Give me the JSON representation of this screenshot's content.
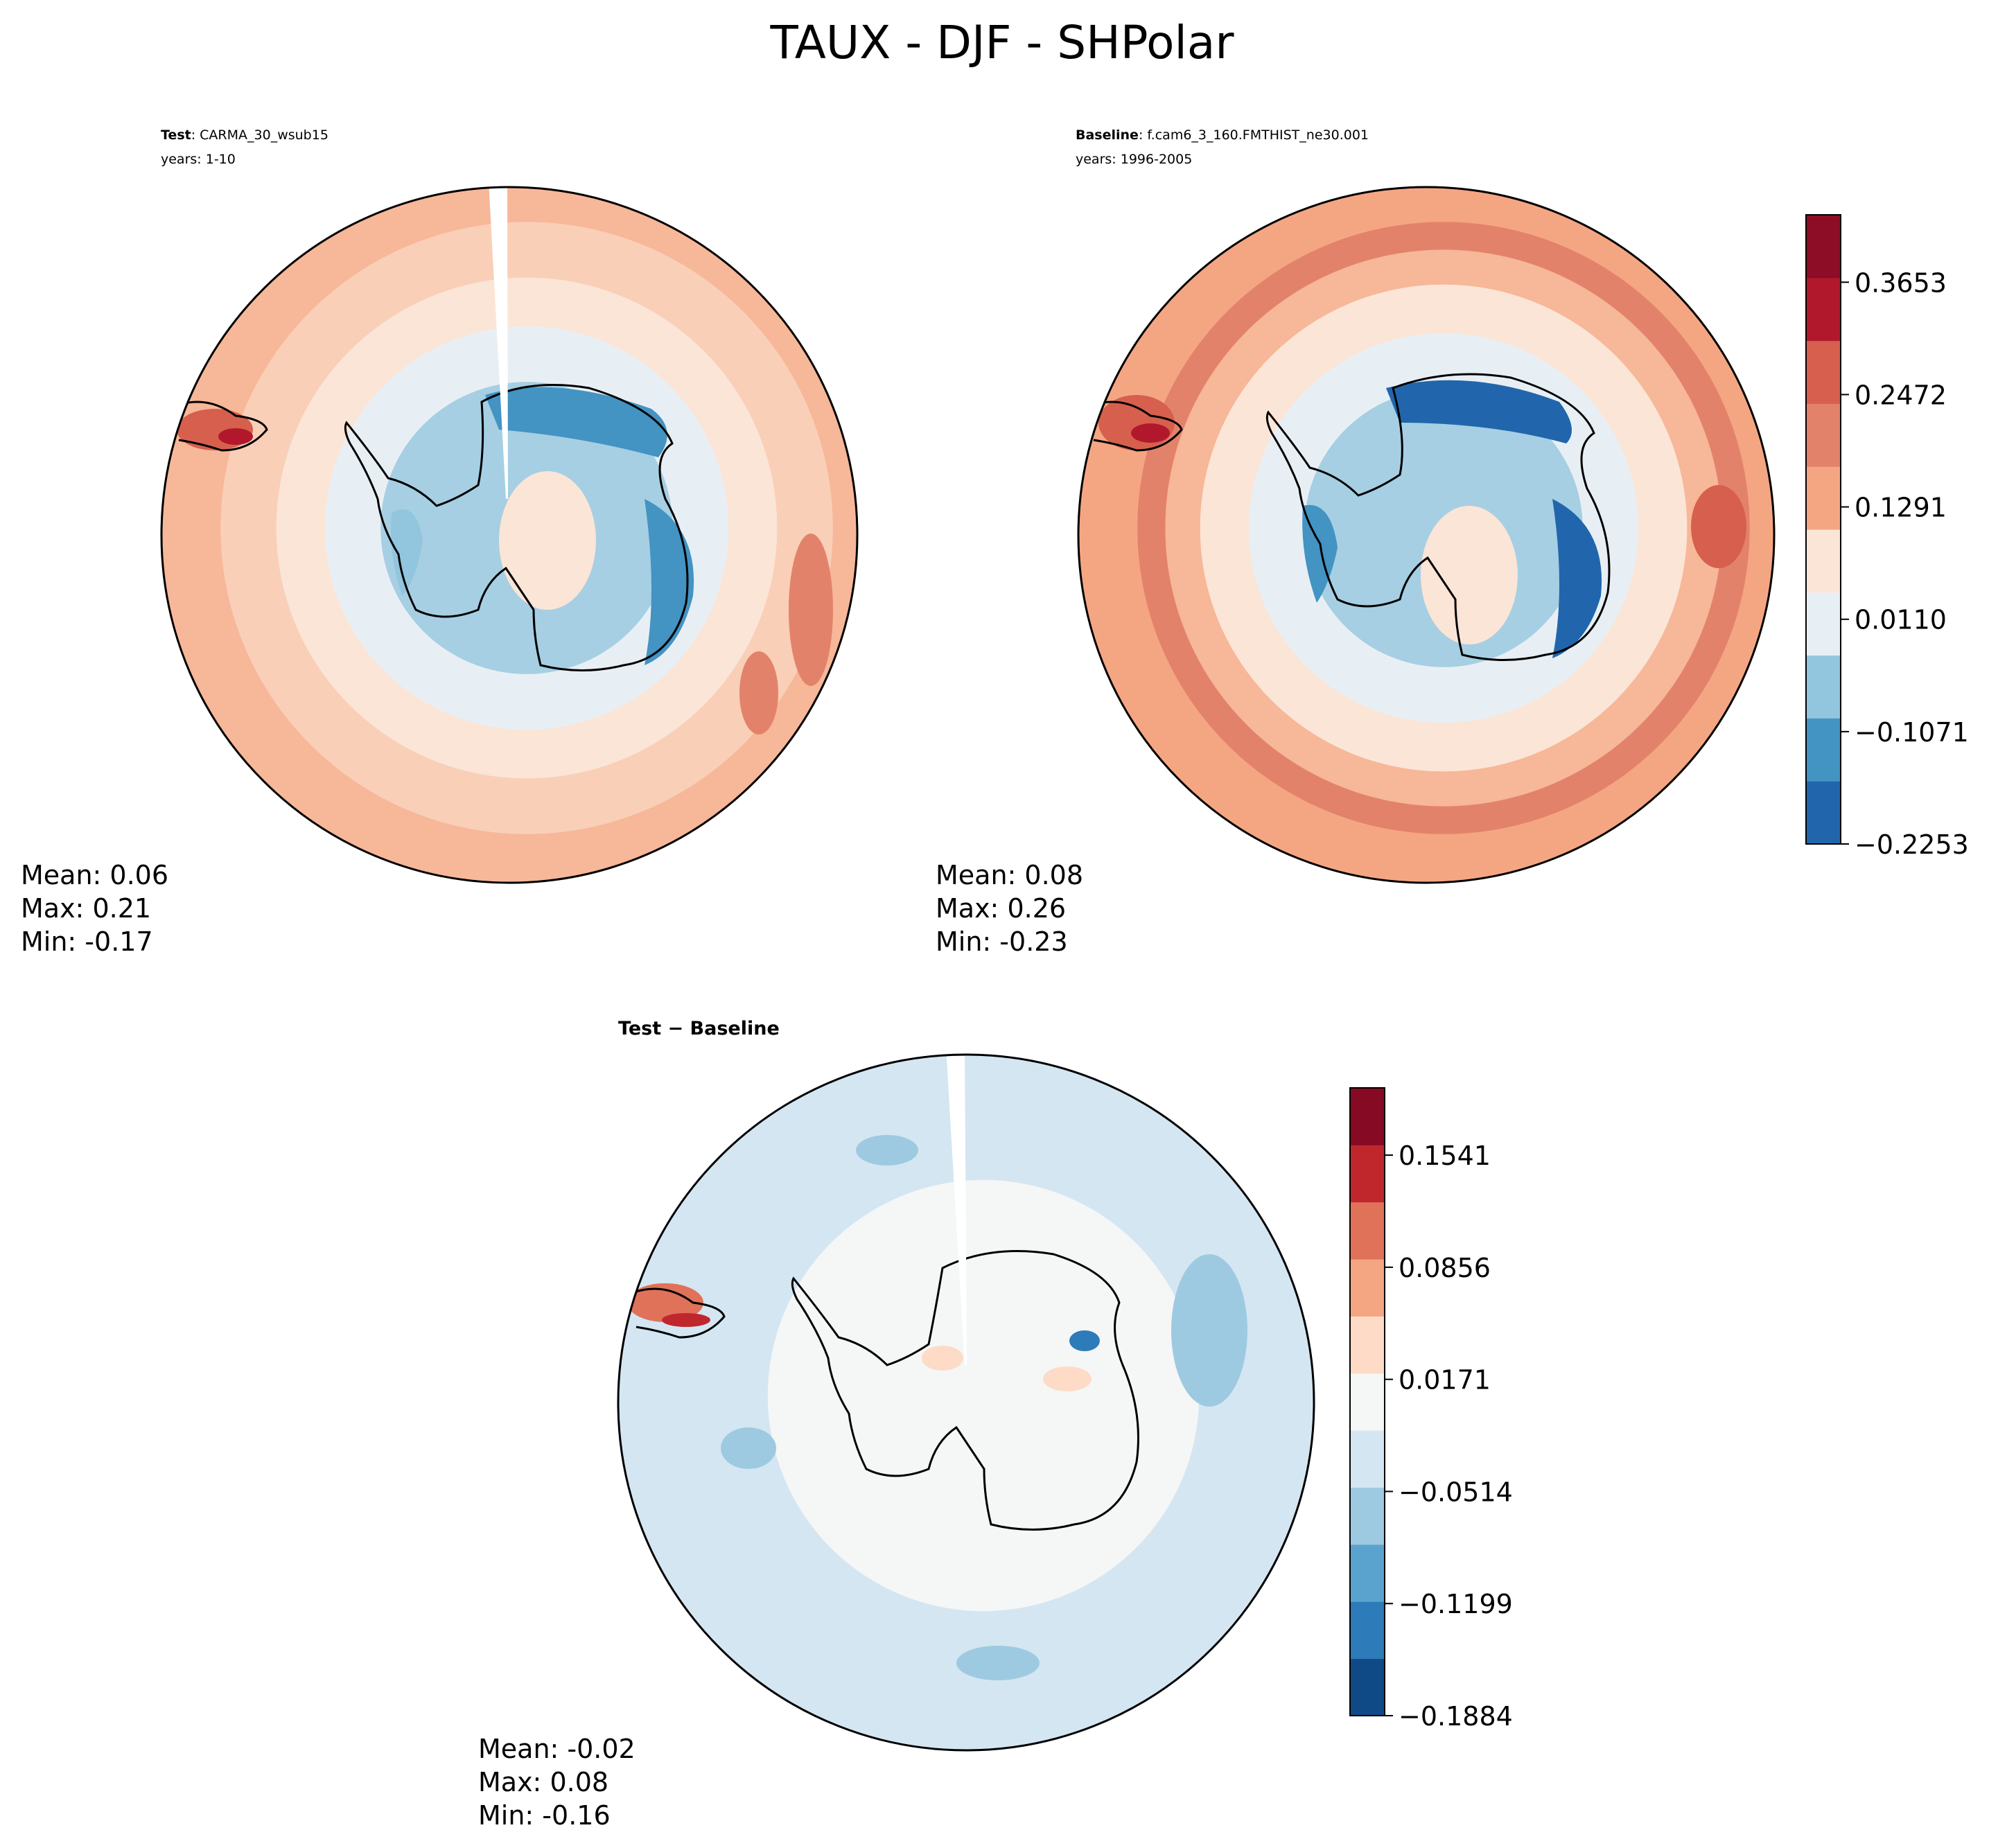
{
  "figure": {
    "title": "TAUX - DJF - SHPolar"
  },
  "chart_data": [
    {
      "type": "heatmap",
      "projection": "south-polar-stereographic",
      "subtitle_bold": "Test",
      "subtitle": ": CARMA_30_wsub15",
      "years": "years: 1-10",
      "stats": {
        "mean": "Mean:  0.06",
        "max": "Max:  0.21",
        "min": "Min: -0.17"
      },
      "rings_from_edge": [
        {
          "r": 1.0,
          "color": "#f7b799"
        },
        {
          "r": 0.88,
          "color": "#f9cfb7"
        },
        {
          "r": 0.72,
          "color": "#fbe5d7"
        },
        {
          "r": 0.58,
          "color": "#e8eff4"
        },
        {
          "r": 0.42,
          "color": "#a6cfe3"
        }
      ],
      "seam_gap": true
    },
    {
      "type": "heatmap",
      "projection": "south-polar-stereographic",
      "subtitle_bold": "Baseline",
      "subtitle": ": f.cam6_3_160.FMTHIST_ne30.001",
      "years": "years: 1996-2005",
      "stats": {
        "mean": "Mean:  0.08",
        "max": "Max:  0.26",
        "min": "Min: -0.23"
      },
      "rings_from_edge": [
        {
          "r": 1.0,
          "color": "#f4a683"
        },
        {
          "r": 0.88,
          "color": "#e3826a"
        },
        {
          "r": 0.8,
          "color": "#f7b799"
        },
        {
          "r": 0.7,
          "color": "#fbe5d7"
        },
        {
          "r": 0.56,
          "color": "#e8eff4"
        },
        {
          "r": 0.4,
          "color": "#a6cfe3"
        }
      ],
      "seam_gap": false,
      "colorbar": {
        "ticks": [
          "0.3653",
          "0.2472",
          "0.1291",
          "0.0110",
          "−0.1071",
          "−0.2253"
        ],
        "colors": [
          "#2166ac",
          "#4393c3",
          "#92c5de",
          "#e8eff4",
          "#fbe5d7",
          "#f4a683",
          "#e3826a",
          "#d6604d",
          "#b2182b",
          "#8c0d25"
        ]
      }
    },
    {
      "type": "heatmap",
      "projection": "south-polar-stereographic",
      "subtitle": "Test − Baseline",
      "stats": {
        "mean": "Mean: -0.02",
        "max": "Max:  0.08",
        "min": "Min: -0.16"
      },
      "rings_from_edge": [
        {
          "r": 1.0,
          "color": "#d4e6f1"
        },
        {
          "r": 0.62,
          "color": "#f5f6f6"
        }
      ],
      "seam_gap": true,
      "colorbar": {
        "ticks": [
          "0.1541",
          "0.0856",
          "0.0171",
          "−0.0514",
          "−0.1199",
          "−0.1884"
        ],
        "colors": [
          "#0f4a87",
          "#2d7bb8",
          "#5aa3cf",
          "#9ecae1",
          "#d4e6f1",
          "#f5f6f6",
          "#fddbc7",
          "#f4a582",
          "#e0725a",
          "#c0272d",
          "#870a24"
        ]
      }
    }
  ]
}
